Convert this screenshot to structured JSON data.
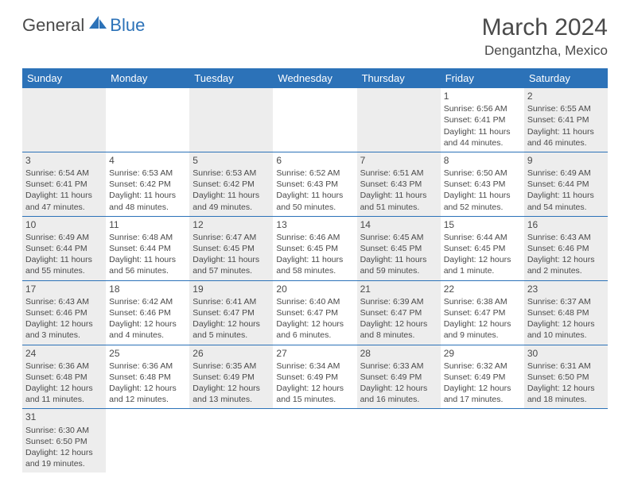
{
  "logo": {
    "part1": "General",
    "part2": "Blue"
  },
  "title": "March 2024",
  "location": "Dengantzha, Mexico",
  "colors": {
    "header_bg": "#2c72b8",
    "header_text": "#ffffff",
    "shaded_bg": "#ededed",
    "border": "#2c72b8",
    "text": "#4a4a4a"
  },
  "day_headers": [
    "Sunday",
    "Monday",
    "Tuesday",
    "Wednesday",
    "Thursday",
    "Friday",
    "Saturday"
  ],
  "weeks": [
    [
      null,
      null,
      null,
      null,
      null,
      {
        "n": "1",
        "sr": "6:56 AM",
        "ss": "6:41 PM",
        "dl": "11 hours and 44 minutes."
      },
      {
        "n": "2",
        "sr": "6:55 AM",
        "ss": "6:41 PM",
        "dl": "11 hours and 46 minutes."
      }
    ],
    [
      {
        "n": "3",
        "sr": "6:54 AM",
        "ss": "6:41 PM",
        "dl": "11 hours and 47 minutes."
      },
      {
        "n": "4",
        "sr": "6:53 AM",
        "ss": "6:42 PM",
        "dl": "11 hours and 48 minutes."
      },
      {
        "n": "5",
        "sr": "6:53 AM",
        "ss": "6:42 PM",
        "dl": "11 hours and 49 minutes."
      },
      {
        "n": "6",
        "sr": "6:52 AM",
        "ss": "6:43 PM",
        "dl": "11 hours and 50 minutes."
      },
      {
        "n": "7",
        "sr": "6:51 AM",
        "ss": "6:43 PM",
        "dl": "11 hours and 51 minutes."
      },
      {
        "n": "8",
        "sr": "6:50 AM",
        "ss": "6:43 PM",
        "dl": "11 hours and 52 minutes."
      },
      {
        "n": "9",
        "sr": "6:49 AM",
        "ss": "6:44 PM",
        "dl": "11 hours and 54 minutes."
      }
    ],
    [
      {
        "n": "10",
        "sr": "6:49 AM",
        "ss": "6:44 PM",
        "dl": "11 hours and 55 minutes."
      },
      {
        "n": "11",
        "sr": "6:48 AM",
        "ss": "6:44 PM",
        "dl": "11 hours and 56 minutes."
      },
      {
        "n": "12",
        "sr": "6:47 AM",
        "ss": "6:45 PM",
        "dl": "11 hours and 57 minutes."
      },
      {
        "n": "13",
        "sr": "6:46 AM",
        "ss": "6:45 PM",
        "dl": "11 hours and 58 minutes."
      },
      {
        "n": "14",
        "sr": "6:45 AM",
        "ss": "6:45 PM",
        "dl": "11 hours and 59 minutes."
      },
      {
        "n": "15",
        "sr": "6:44 AM",
        "ss": "6:45 PM",
        "dl": "12 hours and 1 minute."
      },
      {
        "n": "16",
        "sr": "6:43 AM",
        "ss": "6:46 PM",
        "dl": "12 hours and 2 minutes."
      }
    ],
    [
      {
        "n": "17",
        "sr": "6:43 AM",
        "ss": "6:46 PM",
        "dl": "12 hours and 3 minutes."
      },
      {
        "n": "18",
        "sr": "6:42 AM",
        "ss": "6:46 PM",
        "dl": "12 hours and 4 minutes."
      },
      {
        "n": "19",
        "sr": "6:41 AM",
        "ss": "6:47 PM",
        "dl": "12 hours and 5 minutes."
      },
      {
        "n": "20",
        "sr": "6:40 AM",
        "ss": "6:47 PM",
        "dl": "12 hours and 6 minutes."
      },
      {
        "n": "21",
        "sr": "6:39 AM",
        "ss": "6:47 PM",
        "dl": "12 hours and 8 minutes."
      },
      {
        "n": "22",
        "sr": "6:38 AM",
        "ss": "6:47 PM",
        "dl": "12 hours and 9 minutes."
      },
      {
        "n": "23",
        "sr": "6:37 AM",
        "ss": "6:48 PM",
        "dl": "12 hours and 10 minutes."
      }
    ],
    [
      {
        "n": "24",
        "sr": "6:36 AM",
        "ss": "6:48 PM",
        "dl": "12 hours and 11 minutes."
      },
      {
        "n": "25",
        "sr": "6:36 AM",
        "ss": "6:48 PM",
        "dl": "12 hours and 12 minutes."
      },
      {
        "n": "26",
        "sr": "6:35 AM",
        "ss": "6:49 PM",
        "dl": "12 hours and 13 minutes."
      },
      {
        "n": "27",
        "sr": "6:34 AM",
        "ss": "6:49 PM",
        "dl": "12 hours and 15 minutes."
      },
      {
        "n": "28",
        "sr": "6:33 AM",
        "ss": "6:49 PM",
        "dl": "12 hours and 16 minutes."
      },
      {
        "n": "29",
        "sr": "6:32 AM",
        "ss": "6:49 PM",
        "dl": "12 hours and 17 minutes."
      },
      {
        "n": "30",
        "sr": "6:31 AM",
        "ss": "6:50 PM",
        "dl": "12 hours and 18 minutes."
      }
    ],
    [
      {
        "n": "31",
        "sr": "6:30 AM",
        "ss": "6:50 PM",
        "dl": "12 hours and 19 minutes."
      },
      null,
      null,
      null,
      null,
      null,
      null
    ]
  ],
  "labels": {
    "sunrise": "Sunrise:",
    "sunset": "Sunset:",
    "daylight": "Daylight:"
  }
}
